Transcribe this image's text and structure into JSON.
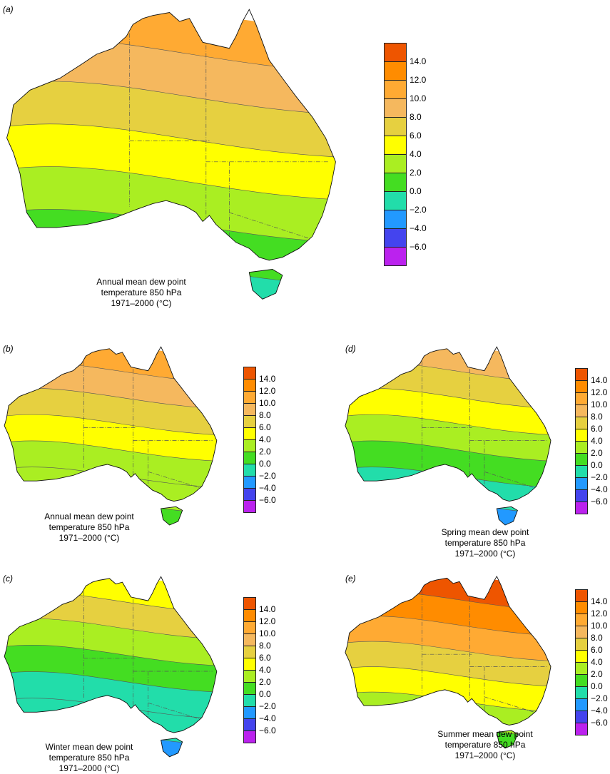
{
  "legend_levels": [
    "14.0",
    "12.0",
    "10.0",
    "8.0",
    "6.0",
    "4.0",
    "2.0",
    "0.0",
    "−2.0",
    "−4.0",
    "−6.0"
  ],
  "legend_colors": [
    "#ee5500",
    "#ff8c00",
    "#ffaa33",
    "#f5b85e",
    "#e6d040",
    "#ffff00",
    "#aaee22",
    "#44dd22",
    "#22ddaa",
    "#2299ff",
    "#4444ee",
    "#bb22ee"
  ],
  "panels": [
    {
      "id": "a",
      "label": "(a)",
      "caption": [
        "Annual mean dew point",
        "temperature 850 hPa",
        "1971–2000 (°C)"
      ],
      "bands": [
        "#ffaa33",
        "#f5b85e",
        "#e6d040",
        "#ffff00",
        "#aaee22",
        "#44dd22",
        "#22ddaa"
      ]
    },
    {
      "id": "b",
      "label": "(b)",
      "caption": [
        "Annual mean dew point",
        "temperature 850 hPa",
        "1971–2000 (°C)"
      ],
      "bands": [
        "#ffaa33",
        "#f5b85e",
        "#e6d040",
        "#ffff00",
        "#aaee22",
        "#aaee22",
        "#44dd22"
      ]
    },
    {
      "id": "d",
      "label": "(d)",
      "caption": [
        "Spring mean dew point",
        "temperature 850 hPa",
        "1971–2000 (°C)"
      ],
      "bands": [
        "#f5b85e",
        "#e6d040",
        "#ffff00",
        "#aaee22",
        "#44dd22",
        "#22ddaa",
        "#2299ff"
      ]
    },
    {
      "id": "c",
      "label": "(c)",
      "caption": [
        "Winter mean dew point",
        "temperature 850 hPa",
        "1971–2000 (°C)"
      ],
      "bands": [
        "#ffff00",
        "#e6d040",
        "#aaee22",
        "#44dd22",
        "#22ddaa",
        "#22ddaa",
        "#2299ff"
      ]
    },
    {
      "id": "e",
      "label": "(e)",
      "caption": [
        "Summer mean dew point",
        "temperature 850 hPa",
        "1971–2000 (°C)"
      ],
      "bands": [
        "#ee5500",
        "#ff8c00",
        "#ffaa33",
        "#e6d040",
        "#ffff00",
        "#aaee22",
        "#44dd22"
      ]
    }
  ]
}
